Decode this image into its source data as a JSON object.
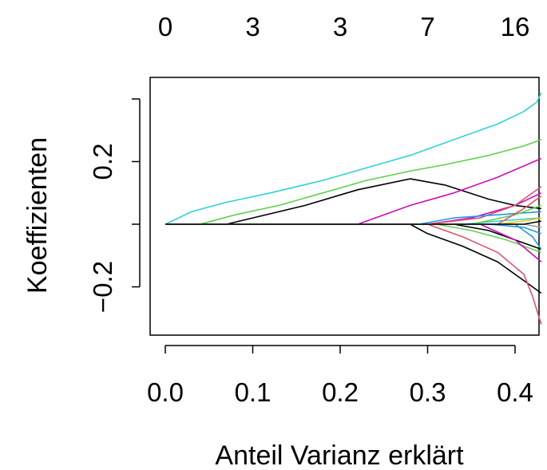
{
  "chart_data": {
    "type": "line",
    "title": "",
    "xlabel": "Anteil Varianz erklärt",
    "ylabel": "Koeffizienten",
    "xlim": [
      0.0,
      0.43
    ],
    "ylim": [
      -0.355,
      0.405
    ],
    "x_ticks": [
      {
        "value": 0.0,
        "label": "0.0"
      },
      {
        "value": 0.1,
        "label": "0.1"
      },
      {
        "value": 0.2,
        "label": "0.2"
      },
      {
        "value": 0.3,
        "label": "0.3"
      },
      {
        "value": 0.4,
        "label": "0.4"
      }
    ],
    "y_ticks": [
      {
        "value": -0.2,
        "label": "−0.2"
      },
      {
        "value": 0.0,
        "label": ""
      },
      {
        "value": 0.2,
        "label": "0.2"
      },
      {
        "value": 0.4,
        "label": ""
      }
    ],
    "top_ticks": [
      {
        "value": 0.0,
        "label": "0"
      },
      {
        "value": 0.1,
        "label": "3"
      },
      {
        "value": 0.2,
        "label": "3"
      },
      {
        "value": 0.3,
        "label": "7"
      },
      {
        "value": 0.4,
        "label": "16"
      }
    ],
    "grid": false,
    "legend": "none",
    "series": [
      {
        "color": "#2ED3D3",
        "x": [
          0,
          0.03,
          0.07,
          0.12,
          0.18,
          0.23,
          0.28,
          0.33,
          0.38,
          0.41,
          0.425,
          0.43
        ],
        "y": [
          0,
          0.04,
          0.07,
          0.1,
          0.14,
          0.18,
          0.22,
          0.27,
          0.32,
          0.36,
          0.39,
          0.42
        ]
      },
      {
        "color": "#61D04F",
        "x": [
          0,
          0.04,
          0.08,
          0.13,
          0.18,
          0.23,
          0.28,
          0.32,
          0.37,
          0.41,
          0.43
        ],
        "y": [
          0,
          0.0,
          0.03,
          0.06,
          0.1,
          0.14,
          0.17,
          0.19,
          0.22,
          0.25,
          0.27
        ]
      },
      {
        "color": "#000000",
        "x": [
          0,
          0.07,
          0.1,
          0.16,
          0.22,
          0.28,
          0.32,
          0.37,
          0.4,
          0.43
        ],
        "y": [
          0,
          0.0,
          0.02,
          0.06,
          0.11,
          0.145,
          0.125,
          0.08,
          0.06,
          0.05
        ]
      },
      {
        "color": "#CD0BBC",
        "x": [
          0,
          0.22,
          0.25,
          0.28,
          0.33,
          0.38,
          0.43
        ],
        "y": [
          0,
          0.0,
          0.03,
          0.06,
          0.1,
          0.15,
          0.21
        ]
      },
      {
        "color": "#000000",
        "x": [
          0,
          0.28,
          0.3,
          0.34,
          0.38,
          0.41,
          0.43
        ],
        "y": [
          0,
          0.0,
          -0.03,
          -0.07,
          -0.12,
          -0.18,
          -0.22
        ]
      },
      {
        "color": "#DF536B",
        "x": [
          0,
          0.3,
          0.34,
          0.38,
          0.41,
          0.42,
          0.43
        ],
        "y": [
          0,
          0.0,
          -0.04,
          -0.09,
          -0.16,
          -0.23,
          -0.32
        ]
      },
      {
        "color": "#CD0BBC",
        "x": [
          0,
          0.3,
          0.35,
          0.4,
          0.43
        ],
        "y": [
          0,
          0.0,
          0.02,
          0.06,
          0.1
        ]
      },
      {
        "color": "#DF536B",
        "x": [
          0,
          0.3,
          0.36,
          0.4,
          0.43
        ],
        "y": [
          0,
          0.0,
          0.02,
          0.06,
          0.12
        ]
      },
      {
        "color": "#2297E6",
        "x": [
          0,
          0.29,
          0.33,
          0.38,
          0.43
        ],
        "y": [
          0,
          0.0,
          0.02,
          0.03,
          0.04
        ]
      },
      {
        "color": "#61D04F",
        "x": [
          0,
          0.31,
          0.35,
          0.39,
          0.43
        ],
        "y": [
          0,
          0.0,
          -0.02,
          -0.05,
          -0.09
        ]
      },
      {
        "color": "#000000",
        "x": [
          0,
          0.33,
          0.37,
          0.4,
          0.43
        ],
        "y": [
          0,
          0.0,
          -0.02,
          -0.05,
          -0.08
        ]
      },
      {
        "color": "#2ED3D3",
        "x": [
          0,
          0.34,
          0.38,
          0.43
        ],
        "y": [
          0,
          0.0,
          0.01,
          0.02
        ]
      },
      {
        "color": "#61D04F",
        "x": [
          0,
          0.35,
          0.4,
          0.43
        ],
        "y": [
          0,
          0.0,
          0.03,
          0.06
        ]
      },
      {
        "color": "#CD0BBC",
        "x": [
          0,
          0.36,
          0.4,
          0.43
        ],
        "y": [
          0,
          0.0,
          -0.05,
          -0.12
        ]
      },
      {
        "color": "#2297E6",
        "x": [
          0,
          0.37,
          0.41,
          0.43
        ],
        "y": [
          0,
          0.0,
          -0.01,
          -0.03
        ]
      },
      {
        "color": "#F5C710",
        "x": [
          0,
          0.38,
          0.41,
          0.43
        ],
        "y": [
          0,
          0.0,
          0.01,
          0.02
        ]
      },
      {
        "color": "#DF536B",
        "x": [
          0,
          0.38,
          0.41,
          0.43
        ],
        "y": [
          0,
          0.0,
          0.05,
          0.09
        ]
      },
      {
        "color": "#2297E6",
        "x": [
          0,
          0.4,
          0.42,
          0.43
        ],
        "y": [
          0,
          0.0,
          -0.04,
          -0.08
        ]
      },
      {
        "color": "#9E9E9E",
        "x": [
          0,
          0.41,
          0.43
        ],
        "y": [
          0,
          0.0,
          -0.01
        ]
      },
      {
        "color": "#000000",
        "x": [
          0,
          0.41,
          0.43
        ],
        "y": [
          0,
          0.0,
          0.01
        ]
      }
    ]
  }
}
